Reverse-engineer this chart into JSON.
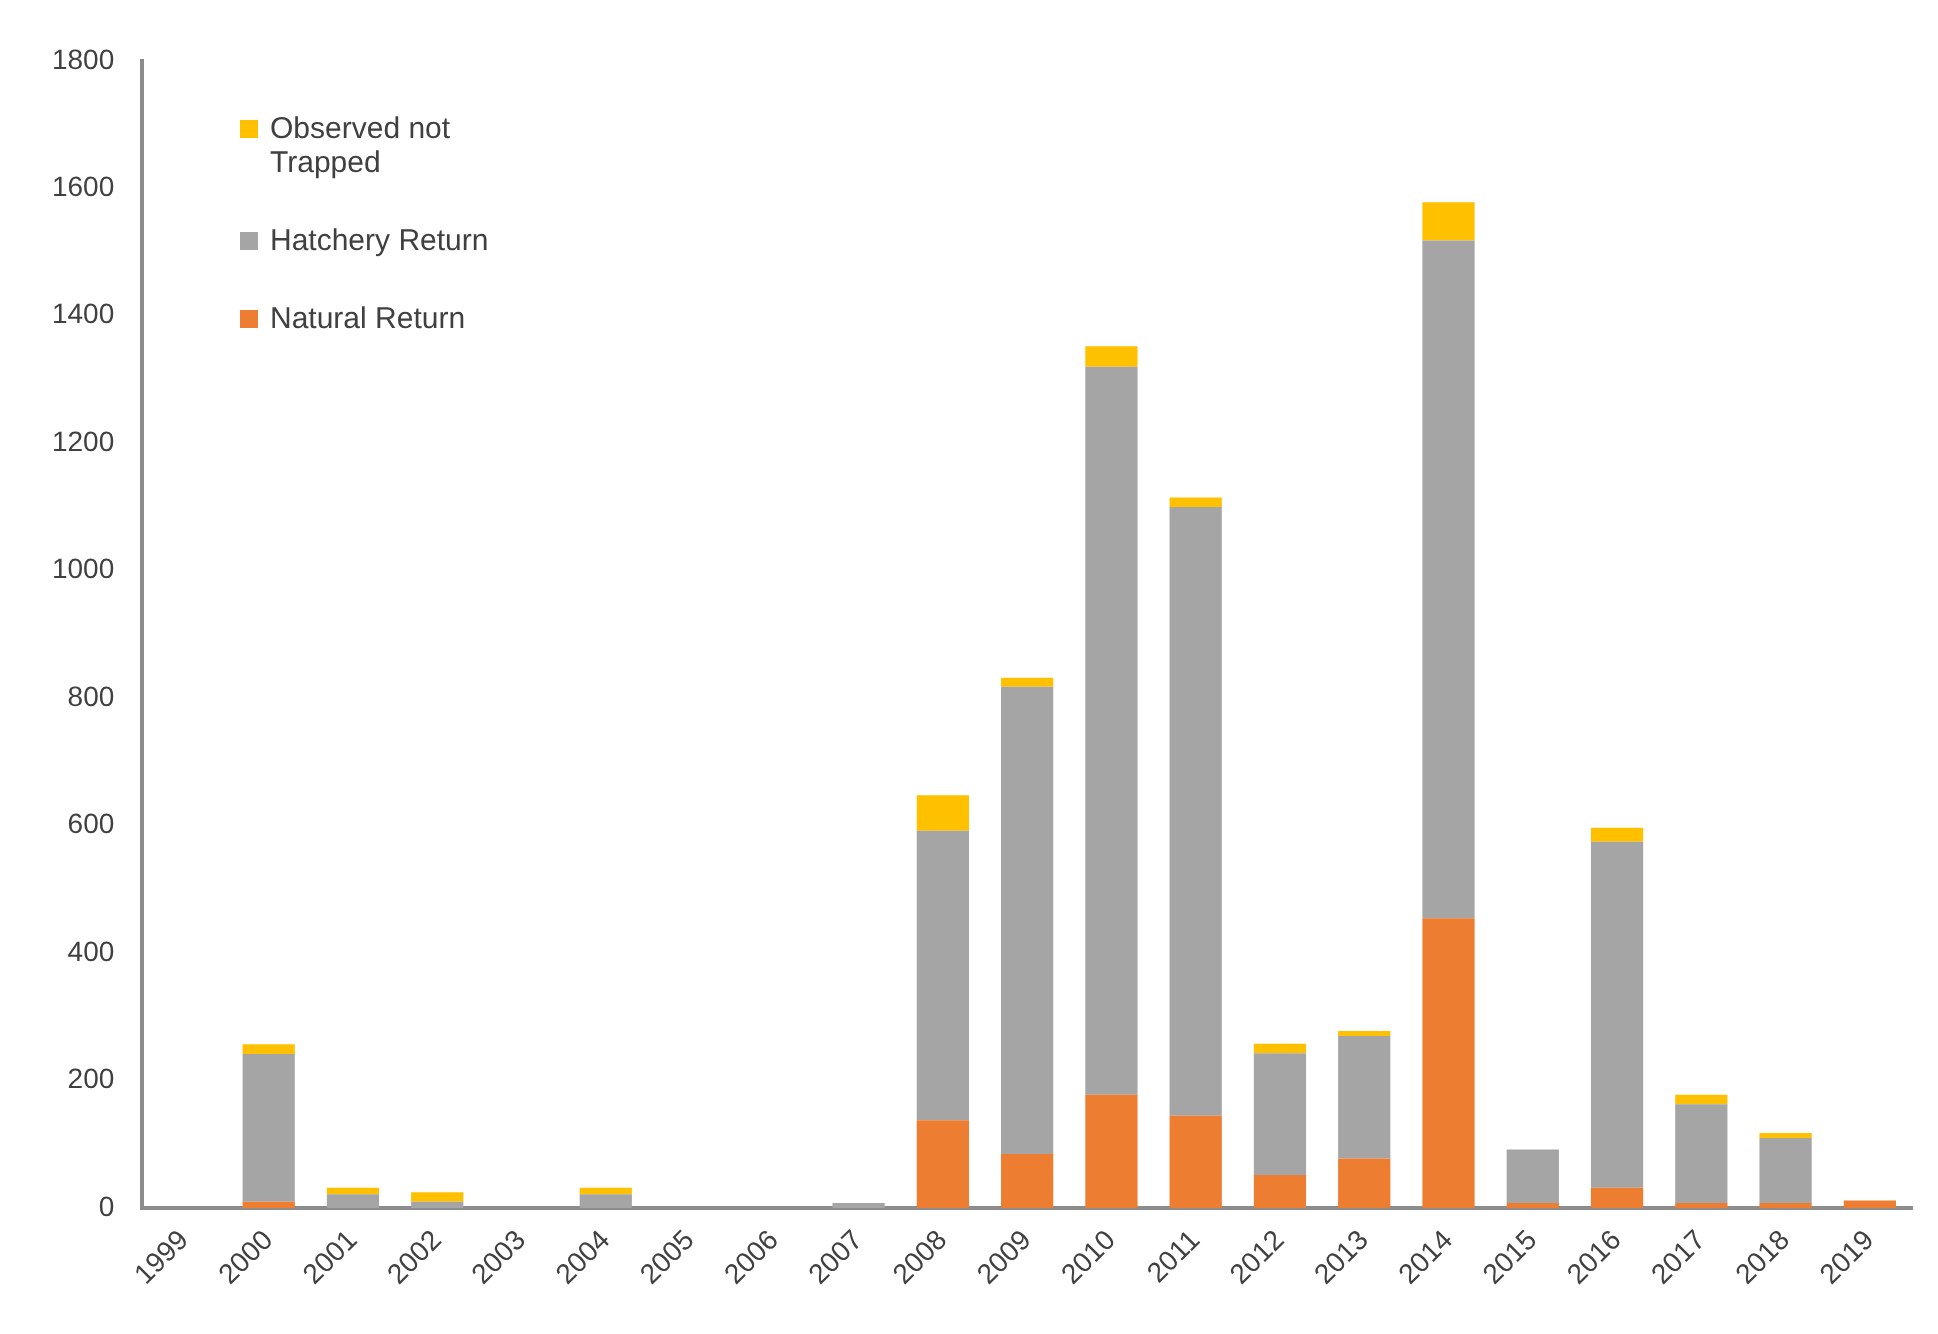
{
  "chart_data": {
    "type": "bar",
    "stacked": true,
    "categories": [
      "1999",
      "2000",
      "2001",
      "2002",
      "2003",
      "2004",
      "2005",
      "2006",
      "2007",
      "2008",
      "2009",
      "2010",
      "2011",
      "2012",
      "2013",
      "2014",
      "2015",
      "2016",
      "2017",
      "2018",
      "2019"
    ],
    "series": [
      {
        "name": "Natural Return",
        "color": "#ed7d31",
        "values": [
          0,
          10,
          0,
          0,
          0,
          0,
          0,
          0,
          0,
          138,
          85,
          178,
          145,
          52,
          78,
          455,
          8,
          32,
          8,
          8,
          12
        ]
      },
      {
        "name": "Hatchery Return",
        "color": "#a5a5a5",
        "values": [
          0,
          232,
          22,
          10,
          0,
          22,
          0,
          0,
          8,
          454,
          733,
          1142,
          955,
          191,
          192,
          1063,
          84,
          543,
          155,
          102,
          0
        ]
      },
      {
        "name": "Observed not Trapped",
        "color": "#ffc000",
        "values": [
          0,
          15,
          10,
          15,
          0,
          10,
          0,
          0,
          0,
          56,
          14,
          32,
          15,
          15,
          8,
          60,
          0,
          22,
          15,
          8,
          0
        ]
      }
    ],
    "ylim": [
      0,
      1800
    ],
    "yticks": [
      0,
      200,
      400,
      600,
      800,
      1000,
      1200,
      1400,
      1600,
      1800
    ],
    "grid": false,
    "legend": "top left"
  }
}
